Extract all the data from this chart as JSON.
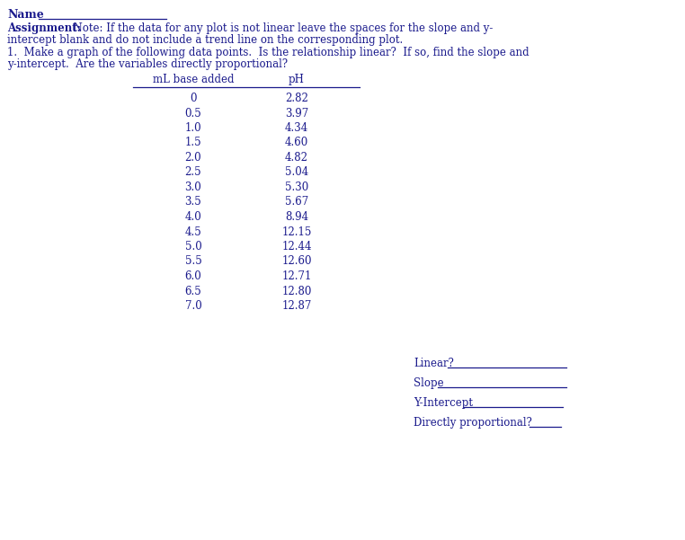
{
  "title_name": "Name",
  "assignment_bold": "Assignment:",
  "assignment_rest": "  Note: If the data for any plot is not linear leave the spaces for the slope and y-",
  "assignment_line2": "intercept blank and do not include a trend line on the corresponding plot.",
  "question_line1": "1.  Make a graph of the following data points.  Is the relationship linear?  If so, find the slope and",
  "question_line2": "y-intercept.  Are the variables directly proportional?",
  "col1_header": "mL base added",
  "col2_header": "pH",
  "col1_data": [
    "0",
    "0.5",
    "1.0",
    "1.5",
    "2.0",
    "2.5",
    "3.0",
    "3.5",
    "4.0",
    "4.5",
    "5.0",
    "5.5",
    "6.0",
    "6.5",
    "7.0"
  ],
  "col2_data": [
    "2.82",
    "3.97",
    "4.34",
    "4.60",
    "4.82",
    "5.04",
    "5.30",
    "5.67",
    "8.94",
    "12.15",
    "12.44",
    "12.60",
    "12.71",
    "12.80",
    "12.87"
  ],
  "field1_label": "Linear?",
  "field2_label": "Slope",
  "field3_label": "Y-Intercept",
  "field4_label": "Directly proportional?",
  "bg_color": "#ffffff",
  "text_color": "#1a1a8c",
  "font_size": 8.5
}
